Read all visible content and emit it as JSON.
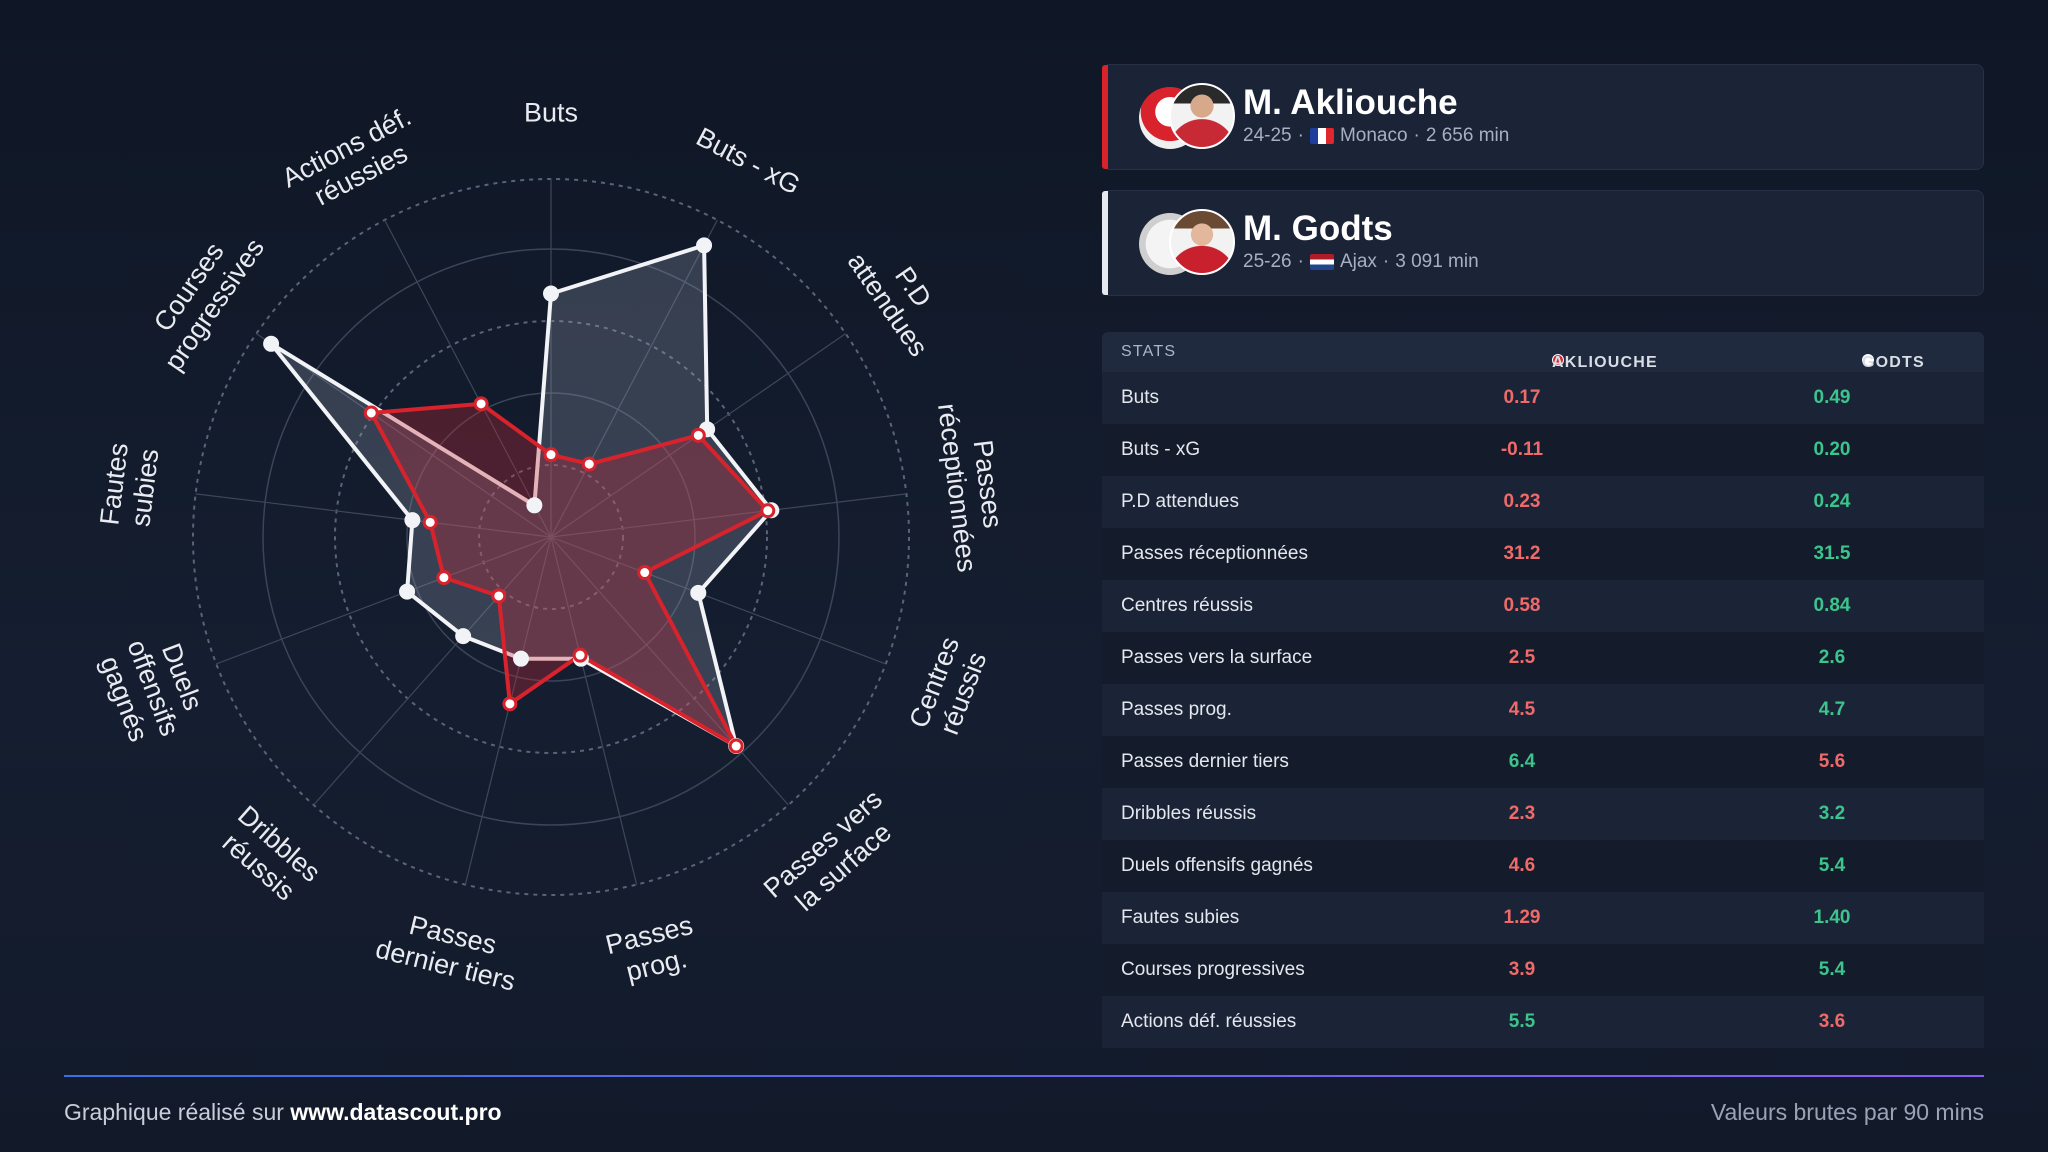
{
  "players": [
    {
      "name": "M. Akliouche",
      "season": "24-25",
      "club": "Monaco",
      "minutes": "2 656 min",
      "color": "#d8232d"
    },
    {
      "name": "M. Godts",
      "season": "25-26",
      "club": "Ajax",
      "minutes": "3 091 min",
      "color": "#ffffff"
    }
  ],
  "table": {
    "header_stat": "STATS",
    "header_a": "AKLIOUCHE",
    "header_b": "GODTS",
    "rows": [
      {
        "label": "Buts",
        "a": "0.17",
        "b": "0.49",
        "a_win": false
      },
      {
        "label": "Buts - xG",
        "a": "-0.11",
        "b": "0.20",
        "a_win": false
      },
      {
        "label": "P.D attendues",
        "a": "0.23",
        "b": "0.24",
        "a_win": false
      },
      {
        "label": "Passes réceptionnées",
        "a": "31.2",
        "b": "31.5",
        "a_win": false
      },
      {
        "label": "Centres réussis",
        "a": "0.58",
        "b": "0.84",
        "a_win": false
      },
      {
        "label": "Passes vers la surface",
        "a": "2.5",
        "b": "2.6",
        "a_win": false
      },
      {
        "label": "Passes prog.",
        "a": "4.5",
        "b": "4.7",
        "a_win": false
      },
      {
        "label": "Passes dernier tiers",
        "a": "6.4",
        "b": "5.6",
        "a_win": true
      },
      {
        "label": "Dribbles réussis",
        "a": "2.3",
        "b": "3.2",
        "a_win": false
      },
      {
        "label": "Duels offensifs gagnés",
        "a": "4.6",
        "b": "5.4",
        "a_win": false
      },
      {
        "label": "Fautes subies",
        "a": "1.29",
        "b": "1.40",
        "a_win": false
      },
      {
        "label": "Courses progressives",
        "a": "3.9",
        "b": "5.4",
        "a_win": false
      },
      {
        "label": "Actions déf. réussies",
        "a": "5.5",
        "b": "3.6",
        "a_win": true
      }
    ]
  },
  "chart_data": {
    "type": "radar",
    "axes": [
      [
        "Buts"
      ],
      [
        "Buts - xG"
      ],
      [
        "P.D",
        "attendues"
      ],
      [
        "Passes",
        "réceptionnées"
      ],
      [
        "Centres",
        "réussis"
      ],
      [
        "Passes vers",
        "la surface"
      ],
      [
        "Passes",
        "prog."
      ],
      [
        "Passes",
        "dernier tiers"
      ],
      [
        "Dribbles",
        "réussis"
      ],
      [
        "Duels",
        "offensifs",
        "gagnés"
      ],
      [
        "Fautes",
        "subies"
      ],
      [
        "Courses",
        "progressives"
      ],
      [
        "Actions déf.",
        "réussies"
      ]
    ],
    "range": [
      0,
      100
    ],
    "series": [
      {
        "name": "M. Godts",
        "color": "#ffffff",
        "percentiles": [
          68,
          92,
          53,
          62,
          44,
          78,
          35,
          35,
          37,
          43,
          39,
          95,
          10
        ]
      },
      {
        "name": "M. Akliouche",
        "color": "#d8232d",
        "percentiles": [
          23,
          23,
          50,
          61,
          28,
          78,
          34,
          48,
          22,
          32,
          34,
          61,
          42
        ]
      }
    ]
  },
  "footer": {
    "left_prefix": "Graphique réalisé sur ",
    "left_site": "www.datascout.pro",
    "right": "Valeurs brutes par 90 mins"
  }
}
